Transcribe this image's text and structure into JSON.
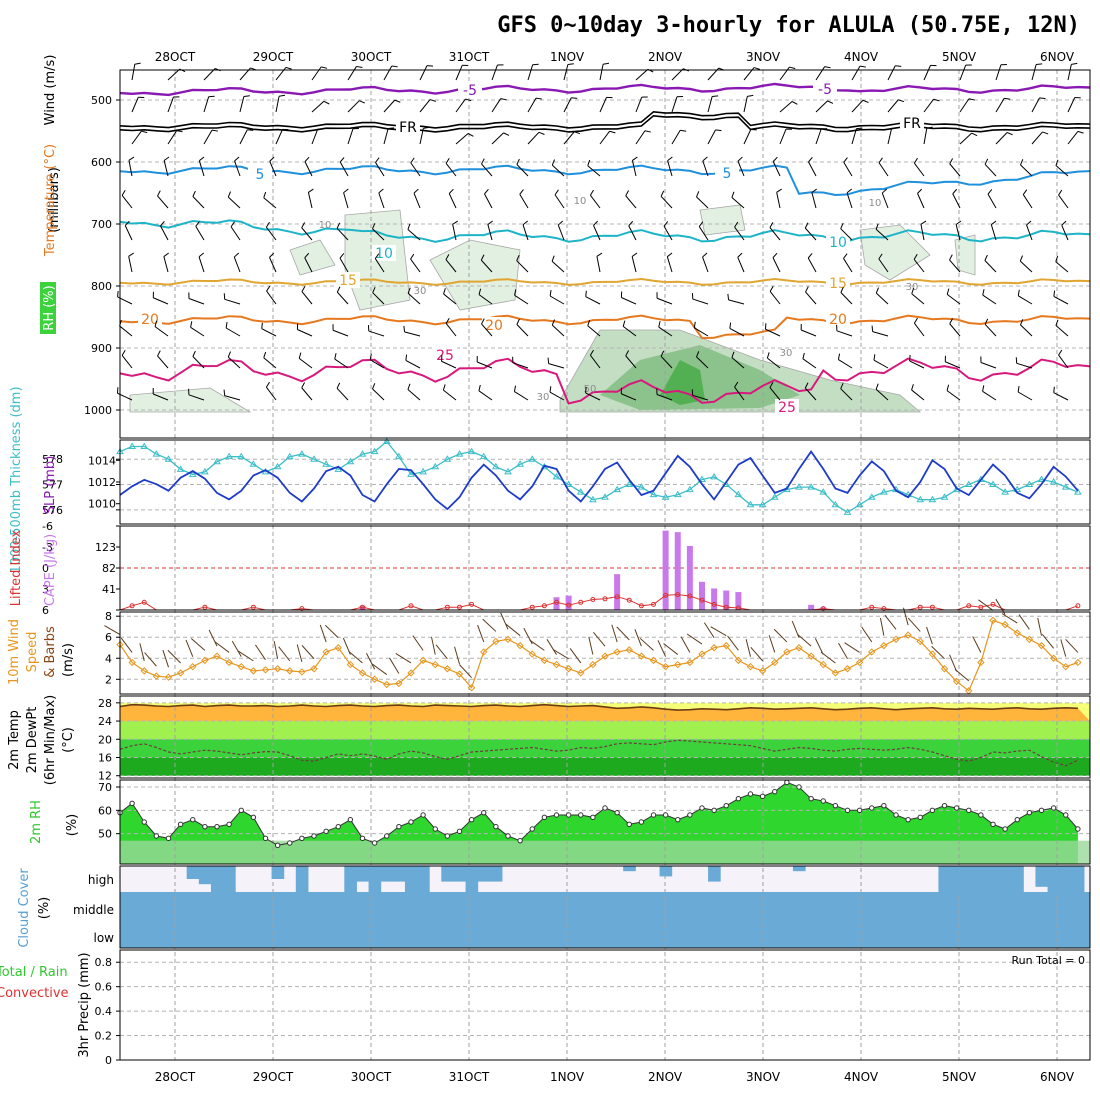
{
  "title": "GFS 0~10day 3-hourly for ALULA (50.75E, 12N)",
  "time_axis": {
    "start_hour": 0,
    "day_labels": [
      "28OCT",
      "29OCT",
      "30OCT",
      "31OCT",
      "1NOV",
      "2NOV",
      "3NOV",
      "4NOV",
      "5NOV",
      "6NOV"
    ]
  },
  "colors": {
    "rh_fill_light": "#e2f0e2",
    "rh_fill_mid": "#c3dec3",
    "rh_fill_dark": "#8cc28c",
    "rh_fill_max": "#52b052",
    "temp_minus5": "#8a19b4",
    "temp_fr": "#000000",
    "temp_5": "#1e90dc",
    "temp_10": "#1eb4c8",
    "temp_15": "#e1a532",
    "temp_20": "#e6781e",
    "temp_25": "#d7197d",
    "slp": "#1e3cc8",
    "thickness": "#3cbec8",
    "cape": "#c87aec",
    "lifted": "#dc3232",
    "wind10": "#e6961e",
    "rh2m": "#2ed62e",
    "cloud": "#6aaad6",
    "temp_orange": "#ffb43c",
    "temp_yellow": "#f5ff78",
    "temp_lgreen": "#a0f050",
    "temp_green": "#3cd23c",
    "temp_dgreen": "#1eaa1e"
  },
  "panels": {
    "upper": {
      "ylabel_unit": "(millibars)",
      "ylabel_wind": "Wind (m/s)",
      "ylabel_temp": "Temperature (°C)",
      "ylabel_rh": "RH (%)",
      "yticks": [
        "500",
        "600",
        "700",
        "800",
        "900",
        "1000"
      ],
      "contour_labels": {
        "minus5": "-5",
        "fr": "FR",
        "t5": "5",
        "t10": "10",
        "t15": "15",
        "t20": "20",
        "t25": "25",
        "rh10": "10",
        "rh30": "30",
        "rh50": "50"
      }
    },
    "slp": {
      "ylabel_left": "1000-500mb Thickness (dm)",
      "ylabel_right": "SLP (mb)",
      "thickness_ticks": [
        "578",
        "577",
        "576"
      ],
      "slp_ticks": [
        "1014",
        "1012",
        "1010"
      ]
    },
    "cape": {
      "ylabel_left": "Lifted Index",
      "ylabel_right": "CAPE (J/kg)",
      "li_ticks": [
        "-6",
        "-3",
        "0",
        "3",
        "6"
      ],
      "cape_ticks": [
        "123",
        "82",
        "41"
      ]
    },
    "wind10": {
      "ylabel_a": "10m Wind",
      "ylabel_b": "Speed",
      "ylabel_c": "& Barbs",
      "ylabel_unit": "(m/s)",
      "yticks": [
        "8",
        "6",
        "4",
        "2"
      ]
    },
    "temp2m": {
      "ylabel_a": "2m Temp",
      "ylabel_b": "2m DewPt",
      "ylabel_c": "(6hr Min/Max)",
      "ylabel_unit": "(°C)",
      "yticks": [
        "28",
        "24",
        "20",
        "16",
        "12"
      ]
    },
    "rh2m": {
      "ylabel": "2m RH",
      "ylabel_unit": "(%)",
      "yticks": [
        "70",
        "60",
        "50"
      ]
    },
    "cloud": {
      "ylabel": "Cloud Cover",
      "ylabel_unit": "(%)",
      "levels": [
        "high",
        "middle",
        "low"
      ]
    },
    "precip": {
      "ylabel_a": "Total / Rain",
      "ylabel_b": "Convective",
      "ylabel_c": "3hr Precip (mm)",
      "yticks": [
        "0.8",
        "0.6",
        "0.4",
        "0.2",
        "0"
      ],
      "run_total": "Run Total = 0"
    }
  },
  "chart_data": [
    {
      "type": "line",
      "name": "thickness",
      "units": "dm",
      "ylim": [
        575.6,
        578.6
      ],
      "values": [
        578.3,
        578.5,
        578.5,
        578.2,
        578.0,
        577.6,
        577.4,
        577.5,
        577.9,
        578.1,
        578.1,
        577.8,
        577.5,
        577.7,
        578.1,
        578.2,
        578.0,
        577.8,
        577.6,
        577.9,
        578.2,
        578.3,
        578.7,
        578.1,
        577.4,
        577.5,
        577.7,
        578.0,
        578.2,
        578.3,
        578.1,
        577.7,
        577.5,
        577.8,
        578.0,
        577.7,
        577.3,
        577.0,
        576.7,
        576.4,
        576.5,
        576.8,
        577.0,
        576.9,
        576.6,
        576.5,
        576.6,
        576.8,
        577.2,
        577.3,
        577.0,
        576.6,
        576.2,
        576.2,
        576.5,
        576.8,
        576.9,
        576.9,
        576.7,
        576.2,
        575.9,
        576.2,
        576.5,
        576.7,
        576.8,
        576.6,
        576.4,
        576.4,
        576.5,
        576.8,
        577.0,
        577.2,
        577.0,
        576.7,
        576.8,
        577.0,
        577.2,
        577.1,
        576.9,
        576.7
      ]
    },
    {
      "type": "line",
      "name": "slp",
      "units": "mb",
      "ylim": [
        1008.5,
        1015.5
      ],
      "values": [
        1010.8,
        1011.6,
        1012.2,
        1011.8,
        1011.2,
        1012.4,
        1013.0,
        1012.3,
        1011.0,
        1010.4,
        1011.2,
        1012.6,
        1013.1,
        1012.4,
        1011.0,
        1010.2,
        1011.4,
        1013.0,
        1013.4,
        1012.6,
        1010.8,
        1010.2,
        1011.8,
        1013.2,
        1013.1,
        1011.8,
        1010.4,
        1009.5,
        1010.6,
        1012.4,
        1013.6,
        1012.6,
        1011.2,
        1010.4,
        1011.6,
        1013.5,
        1013.2,
        1011.2,
        1010.2,
        1011.6,
        1013.2,
        1013.8,
        1012.2,
        1010.8,
        1011.2,
        1012.8,
        1014.4,
        1013.4,
        1011.8,
        1010.4,
        1012.0,
        1013.6,
        1014.2,
        1012.6,
        1011.0,
        1011.4,
        1013.2,
        1014.8,
        1013.2,
        1011.4,
        1011.0,
        1012.6,
        1013.9,
        1013.0,
        1011.2,
        1010.6,
        1012.0,
        1014.0,
        1013.2,
        1011.4,
        1010.8,
        1012.2,
        1013.6,
        1012.6,
        1011.0,
        1010.5,
        1011.8,
        1013.4,
        1012.5,
        1011.2
      ]
    },
    {
      "type": "bar",
      "name": "cape",
      "units": "J/kg",
      "ylim": [
        0,
        164
      ],
      "values": [
        0,
        0,
        0,
        0,
        0,
        0,
        0,
        0,
        0,
        0,
        0,
        0,
        0,
        0,
        0,
        0,
        0,
        0,
        0,
        0,
        8,
        0,
        0,
        0,
        0,
        0,
        0,
        0,
        0,
        0,
        0,
        0,
        0,
        0,
        0,
        0,
        25,
        28,
        0,
        0,
        0,
        70,
        0,
        0,
        0,
        155,
        152,
        125,
        55,
        42,
        38,
        35,
        0,
        0,
        0,
        0,
        0,
        10,
        5,
        0,
        0,
        0,
        0,
        0,
        0,
        0,
        0,
        0,
        0,
        0,
        0,
        0,
        0,
        0,
        0,
        0,
        0,
        0,
        0,
        0
      ]
    },
    {
      "type": "line",
      "name": "lifted_index",
      "units": "index",
      "ylim": [
        -6,
        6
      ],
      "values": [
        6,
        5.4,
        4.9,
        6,
        6,
        6,
        6,
        5.6,
        6,
        6,
        6,
        5.6,
        6,
        6,
        6,
        5.8,
        6,
        6,
        6,
        6,
        5.6,
        6,
        6,
        6,
        5.4,
        6,
        6,
        5.6,
        5.6,
        5.2,
        6,
        6,
        6,
        6,
        5.6,
        5.4,
        4.9,
        5.3,
        4.9,
        4.5,
        4.4,
        4.1,
        4.6,
        5.4,
        5.2,
        3.9,
        3.8,
        4.0,
        4.6,
        5.2,
        5.6,
        5.7,
        6,
        6,
        6,
        6,
        6,
        6,
        5.8,
        6,
        6,
        6,
        5.6,
        5.8,
        6,
        6,
        5.6,
        5.6,
        6,
        6,
        5.4,
        5.6,
        5.2,
        6,
        6,
        6,
        6,
        6,
        6,
        5.4
      ]
    },
    {
      "type": "line",
      "name": "wind10m_speed",
      "units": "m/s",
      "ylim": [
        0.6,
        8.4
      ],
      "values": [
        5.3,
        3.6,
        2.8,
        2.3,
        2.2,
        2.6,
        3.2,
        3.8,
        4.2,
        3.6,
        3.2,
        2.8,
        2.9,
        3.0,
        2.8,
        2.7,
        3.0,
        4.6,
        5.0,
        3.4,
        2.6,
        2.0,
        1.5,
        1.6,
        2.6,
        3.8,
        3.4,
        3.0,
        2.5,
        1.2,
        4.6,
        5.6,
        5.8,
        5.2,
        4.4,
        3.8,
        3.4,
        3.0,
        2.6,
        3.4,
        4.2,
        4.6,
        4.8,
        4.2,
        3.8,
        3.2,
        3.4,
        3.6,
        4.4,
        5.0,
        5.2,
        3.8,
        3.2,
        2.8,
        3.6,
        4.6,
        5.0,
        4.2,
        3.4,
        2.6,
        3.0,
        3.6,
        4.6,
        5.2,
        5.8,
        6.2,
        5.6,
        4.4,
        3.0,
        1.8,
        0.9,
        3.6,
        7.6,
        7.2,
        6.4,
        5.8,
        5.2,
        4.0,
        3.2,
        3.6
      ]
    },
    {
      "type": "area",
      "name": "temp2m",
      "units": "°C",
      "ylim": [
        11.5,
        29.5
      ],
      "values": [
        27.2,
        27.6,
        27.5,
        27.3,
        27.2,
        27.4,
        27.5,
        27.2,
        27.4,
        27.5,
        27.3,
        27.3,
        27.4,
        27.2,
        27.3,
        27.5,
        27.3,
        27.2,
        27.4,
        27.5,
        27.3,
        27.2,
        27.4,
        27.5,
        27.3,
        27.2,
        27.5,
        27.4,
        27.3,
        27.2,
        27.4,
        27.5,
        27.3,
        27.2,
        27.4,
        27.6,
        27.4,
        27.2,
        27.3,
        27.4,
        27.1,
        26.8,
        26.9,
        27.1,
        26.9,
        26.6,
        26.4,
        26.5,
        26.7,
        26.6,
        26.5,
        26.7,
        26.9,
        26.8,
        26.6,
        26.7,
        26.8,
        26.9,
        26.7,
        26.5,
        26.6,
        26.8,
        26.9,
        26.7,
        26.5,
        26.7,
        26.8,
        26.9,
        26.7,
        26.6,
        26.8,
        26.7,
        26.6,
        26.8,
        26.9,
        26.7,
        26.6,
        26.8,
        26.9,
        26.8
      ]
    },
    {
      "type": "line",
      "name": "dewpoint2m",
      "units": "°C",
      "ylim": [
        11.5,
        29.5
      ],
      "values": [
        17.8,
        18.6,
        19.0,
        18.2,
        17.2,
        16.8,
        17.2,
        17.6,
        17.4,
        17.0,
        16.6,
        17.0,
        17.3,
        17.2,
        16.4,
        15.4,
        15.2,
        16.0,
        16.8,
        16.4,
        16.8,
        16.3,
        15.6,
        16.8,
        17.4,
        17.0,
        16.2,
        15.6,
        16.4,
        17.2,
        17.4,
        17.6,
        17.8,
        18.0,
        18.2,
        17.8,
        17.4,
        17.6,
        18.2,
        18.0,
        18.4,
        19.0,
        19.2,
        19.0,
        18.8,
        19.4,
        19.8,
        19.6,
        19.4,
        19.2,
        19.0,
        18.8,
        18.6,
        18.0,
        17.4,
        17.8,
        18.2,
        18.0,
        17.6,
        17.4,
        17.8,
        18.0,
        17.8,
        17.6,
        17.8,
        18.2,
        17.8,
        17.2,
        16.4,
        15.6,
        15.2,
        16.0,
        17.2,
        17.0,
        17.4,
        17.6,
        16.2,
        15.0,
        14.2,
        15.4
      ]
    },
    {
      "type": "area",
      "name": "rh2m",
      "units": "%",
      "ylim": [
        37,
        73
      ],
      "values": [
        59,
        63,
        55,
        49,
        48,
        54,
        56,
        53,
        53,
        54,
        60,
        57,
        48,
        45,
        46,
        48,
        49,
        51,
        53,
        56,
        48,
        46,
        49,
        53,
        55,
        58,
        52,
        49,
        51,
        56,
        59,
        53,
        49,
        47,
        52,
        57,
        58,
        58,
        58,
        57,
        61,
        59,
        54,
        55,
        58,
        58,
        56,
        58,
        61,
        60,
        62,
        65,
        67,
        66,
        68,
        72,
        70,
        65,
        64,
        62,
        60,
        60,
        61,
        62,
        58,
        56,
        57,
        60,
        62,
        61,
        60,
        58,
        54,
        52,
        56,
        59,
        60,
        61,
        58,
        52
      ]
    },
    {
      "type": "bar",
      "name": "cloud_high",
      "units": "%",
      "ylim": [
        0,
        100
      ],
      "values": [
        0,
        0,
        0,
        0,
        0,
        0,
        50,
        70,
        100,
        100,
        0,
        0,
        0,
        50,
        0,
        100,
        0,
        0,
        0,
        100,
        60,
        100,
        60,
        60,
        100,
        100,
        0,
        60,
        60,
        100,
        60,
        60,
        0,
        0,
        0,
        0,
        0,
        0,
        0,
        0,
        0,
        0,
        20,
        0,
        0,
        40,
        0,
        0,
        0,
        60,
        0,
        0,
        0,
        0,
        0,
        0,
        20,
        0,
        0,
        0,
        0,
        0,
        0,
        0,
        0,
        0,
        0,
        0,
        100,
        100,
        100,
        100,
        100,
        100,
        100,
        0,
        80,
        100,
        100,
        100
      ]
    }
  ]
}
